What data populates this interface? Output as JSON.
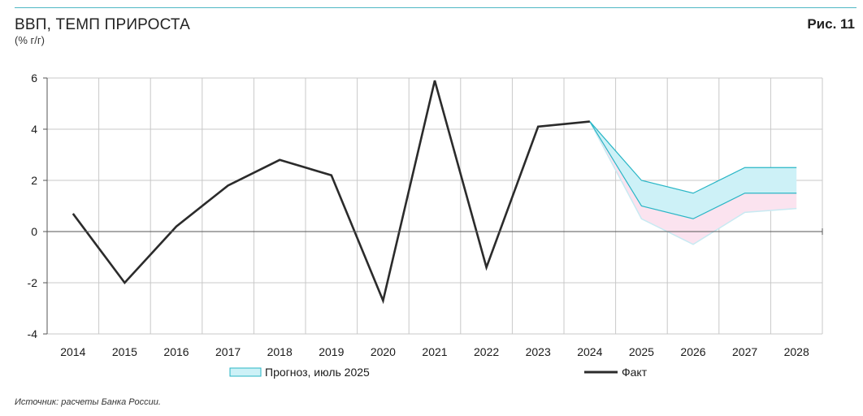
{
  "header": {
    "title": "ВВП, ТЕМП ПРИРОСТА",
    "subtitle": "(% г/г)",
    "figure_label": "Рис. 11"
  },
  "footer": {
    "source": "Источник: расчеты Банка России."
  },
  "colors": {
    "fact_line": "#2b2b2b",
    "forecast_line": "#29b6c6",
    "forecast_fill": "#cdf1f7",
    "scenario_fill": "#fbe3ef",
    "scenario_edge": "#c8eaf2",
    "grid": "#c8c8c8",
    "axis": "#555555",
    "accent_rule": "#4fb8c4"
  },
  "chart_data": {
    "type": "line",
    "title": "ВВП, ТЕМП ПРИРОСТА",
    "ylabel": "(% г/г)",
    "xlabel": "",
    "categories": [
      "2014",
      "2015",
      "2016",
      "2017",
      "2018",
      "2019",
      "2020",
      "2021",
      "2022",
      "2023",
      "2024",
      "2025",
      "2026",
      "2027",
      "2028"
    ],
    "ylim": [
      -4,
      6
    ],
    "yticks": [
      -4,
      -2,
      0,
      2,
      4,
      6
    ],
    "ytick_labels": [
      "-4",
      "-2",
      "0",
      "2",
      "4",
      "6"
    ],
    "grid": true,
    "legend_position": "bottom",
    "series": [
      {
        "name": "Факт",
        "kind": "line",
        "x": [
          "2014",
          "2015",
          "2016",
          "2017",
          "2018",
          "2019",
          "2020",
          "2021",
          "2022",
          "2023",
          "2024"
        ],
        "values": [
          0.7,
          -2.0,
          0.2,
          1.8,
          2.8,
          2.2,
          -2.7,
          5.9,
          -1.4,
          4.1,
          4.3
        ]
      },
      {
        "name": "Прогноз, июль 2025",
        "kind": "band",
        "x": [
          "2024",
          "2025",
          "2026",
          "2027",
          "2028"
        ],
        "lower": [
          4.3,
          1.0,
          0.5,
          1.5,
          1.5
        ],
        "upper": [
          4.3,
          2.0,
          1.5,
          2.5,
          2.5
        ]
      },
      {
        "kind": "band",
        "x": [
          "2024",
          "2025",
          "2026",
          "2027",
          "2028"
        ],
        "lower": [
          4.3,
          0.5,
          -0.5,
          0.75,
          0.9
        ],
        "upper": [
          4.3,
          1.0,
          0.5,
          1.5,
          1.5
        ]
      }
    ]
  }
}
